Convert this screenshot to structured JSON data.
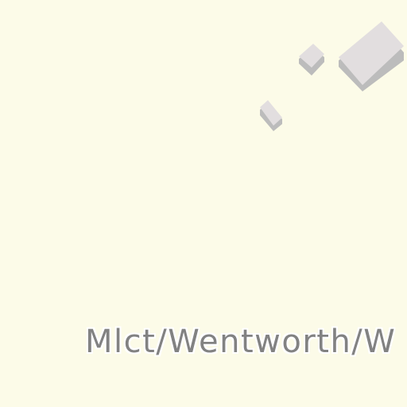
{
  "map": {
    "background_color": "#fcfbe8",
    "building_color": "#e2dedf",
    "building_shadow_color": "#bcbcbc",
    "label": {
      "text": "Mlct/Wentworth/W",
      "color": "#828282"
    },
    "buildings": [
      {
        "id": "building-large"
      },
      {
        "id": "building-small-top"
      },
      {
        "id": "building-small-left"
      }
    ]
  }
}
